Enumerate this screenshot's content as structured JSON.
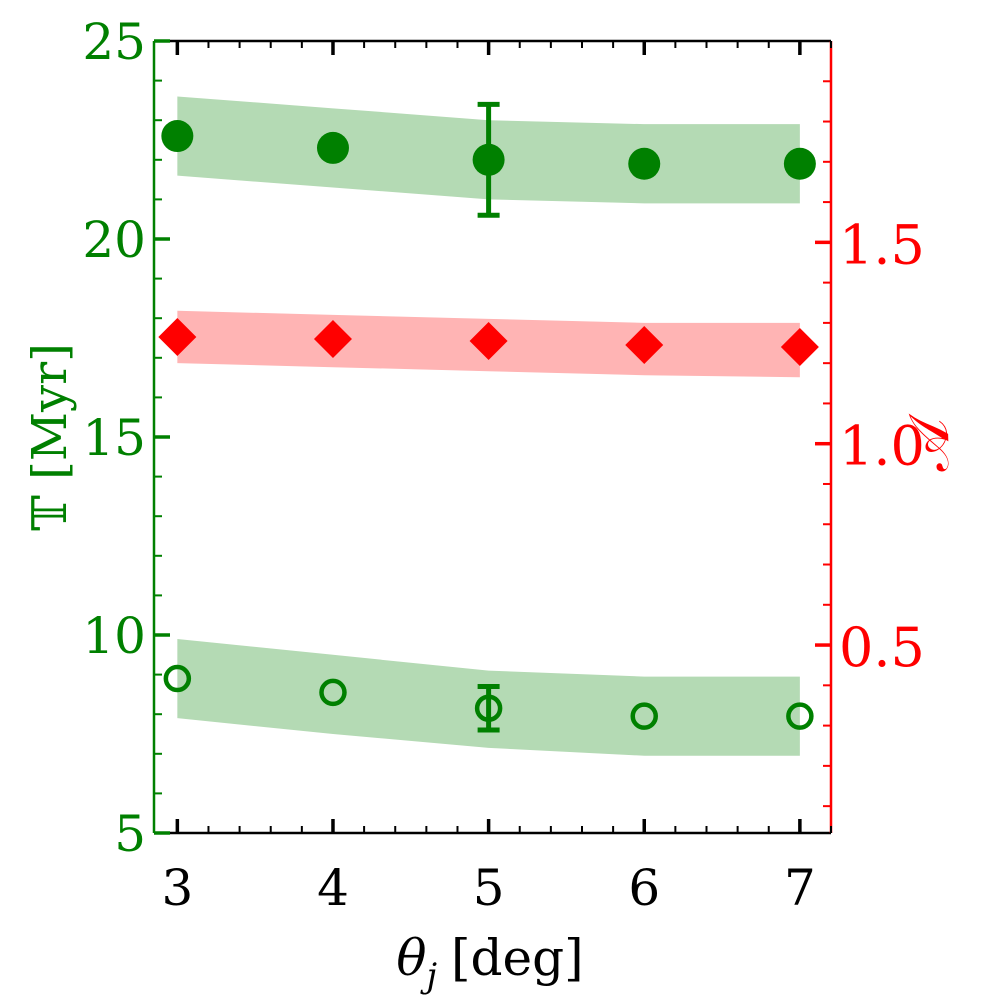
{
  "chart_data": {
    "type": "scatter",
    "xlabel": "θj [deg]",
    "xlabel_main": "θ",
    "xlabel_sub": "j",
    "xlabel_unit": "[deg]",
    "ylabel_left": "𝕋 [Myr]",
    "ylabel_right": "𝒜",
    "xlim": [
      2.85,
      7.2
    ],
    "ylim_left": [
      5,
      25
    ],
    "ylim_right": [
      0.0333,
      2.0
    ],
    "x_ticks": [
      3,
      4,
      5,
      6,
      7
    ],
    "x_tick_labels": [
      "3",
      "4",
      "5",
      "6",
      "7"
    ],
    "y_left_ticks": [
      5,
      10,
      15,
      20,
      25
    ],
    "y_left_tick_labels": [
      "5",
      "10",
      "15",
      "20",
      "25"
    ],
    "y_right_ticks": [
      0.5,
      1.0,
      1.5
    ],
    "y_right_tick_labels": [
      "0.5",
      "1.0",
      "1.5"
    ],
    "colors": {
      "left_axis": "#008000",
      "right_axis": "#ff0000",
      "green_band": "#b4dab4",
      "red_band": "#ffb4b4",
      "frame": "#000000"
    },
    "series": [
      {
        "axis": "left",
        "marker": "filled-circle",
        "color": "#008000",
        "x": [
          3,
          4,
          5,
          6,
          7
        ],
        "y": [
          22.6,
          22.3,
          22.0,
          21.9,
          21.9
        ],
        "band_upper": [
          23.6,
          23.3,
          23.0,
          22.9,
          22.9
        ],
        "band_lower": [
          21.6,
          21.3,
          21.0,
          20.9,
          20.9
        ],
        "errorbar": {
          "x": 5,
          "y": 22.0,
          "low": 20.6,
          "high": 23.4
        }
      },
      {
        "axis": "left",
        "marker": "open-circle",
        "color": "#008000",
        "x": [
          3,
          4,
          5,
          6,
          7
        ],
        "y": [
          8.9,
          8.55,
          8.15,
          7.95,
          7.95
        ],
        "band_upper": [
          9.9,
          9.5,
          9.1,
          8.95,
          8.95
        ],
        "band_lower": [
          7.9,
          7.5,
          7.15,
          6.95,
          6.95
        ],
        "errorbar": {
          "x": 5,
          "y": 8.15,
          "low": 7.6,
          "high": 8.7
        }
      },
      {
        "axis": "right",
        "marker": "diamond",
        "color": "#ff0000",
        "x": [
          3,
          4,
          5,
          6,
          7
        ],
        "y": [
          1.265,
          1.26,
          1.255,
          1.245,
          1.24
        ],
        "band_upper": [
          1.33,
          1.32,
          1.31,
          1.3,
          1.3
        ],
        "band_lower": [
          1.2,
          1.19,
          1.18,
          1.17,
          1.165
        ]
      }
    ]
  }
}
